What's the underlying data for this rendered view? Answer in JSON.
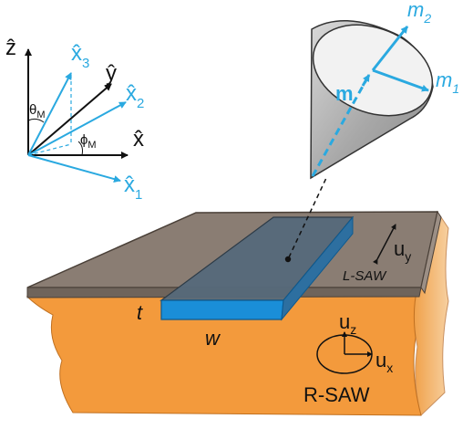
{
  "coordinate_frame": {
    "axes": {
      "z": "ẑ",
      "y": "ŷ",
      "x": "x̂",
      "x1": "x̂",
      "x1_sub": "1",
      "x2": "x̂",
      "x2_sub": "2",
      "x3": "x̂",
      "x3_sub": "3"
    },
    "angles": {
      "theta": "θ",
      "theta_sub": "M",
      "phi": "ϕ",
      "phi_sub": "M"
    }
  },
  "precession_cone": {
    "m": "m",
    "m1": "m",
    "m1_sub": "1",
    "m2": "m",
    "m2_sub": "2"
  },
  "device": {
    "thickness_label": "t",
    "width_label": "w",
    "uy": "u",
    "uy_sub": "y",
    "uz": "u",
    "uz_sub": "z",
    "ux": "u",
    "ux_sub": "x",
    "lsaw": "L-SAW",
    "rsaw": "R-SAW"
  },
  "colors": {
    "substrate": "#f39a3c",
    "substrate_side": "#f5c894",
    "film_top": "#8a7d73",
    "strip_top": "#55697a",
    "strip_side": "#1a8ed8",
    "accent": "#2aa9e0",
    "cone": "#b5b5b5"
  }
}
